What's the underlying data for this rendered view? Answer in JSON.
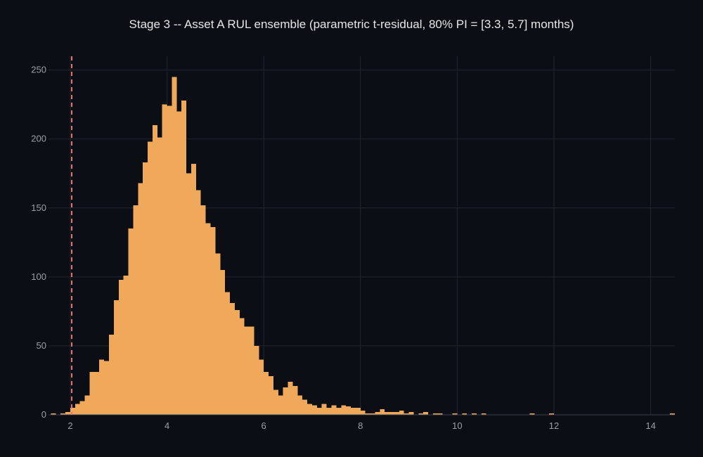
{
  "chart_data": {
    "type": "bar",
    "title": "Stage 3 -- Asset A RUL ensemble (parametric t-residual, 80% PI = [3.3, 5.7] months)",
    "xlabel": "",
    "ylabel": "",
    "xlim": [
      1.55,
      14.5
    ],
    "ylim": [
      0,
      260
    ],
    "grid": true,
    "legend": "none",
    "bar_color": "#f0a95a",
    "reference_line_color": "#e8707a",
    "background_color": "#0b0e14",
    "bin_width": 0.1,
    "x_ticks": [
      2,
      4,
      6,
      8,
      10,
      12,
      14
    ],
    "y_ticks": [
      0,
      50,
      100,
      150,
      200,
      250
    ],
    "reference_line_x": 2.03,
    "bins_start": [
      1.6,
      1.7,
      1.8,
      1.9,
      2.0,
      2.1,
      2.2,
      2.3,
      2.4,
      2.5,
      2.6,
      2.7,
      2.8,
      2.9,
      3.0,
      3.1,
      3.2,
      3.3,
      3.4,
      3.5,
      3.6,
      3.7,
      3.8,
      3.9,
      4.0,
      4.1,
      4.2,
      4.3,
      4.4,
      4.5,
      4.6,
      4.7,
      4.8,
      4.9,
      5.0,
      5.1,
      5.2,
      5.3,
      5.4,
      5.5,
      5.6,
      5.7,
      5.8,
      5.9,
      6.0,
      6.1,
      6.2,
      6.3,
      6.4,
      6.5,
      6.6,
      6.7,
      6.8,
      6.9,
      7.0,
      7.1,
      7.2,
      7.3,
      7.4,
      7.5,
      7.6,
      7.7,
      7.8,
      7.9,
      8.0,
      8.1,
      8.2,
      8.3,
      8.4,
      8.5,
      8.6,
      8.7,
      8.8,
      8.9,
      9.0,
      9.2,
      9.3,
      9.5,
      9.6,
      9.9,
      10.1,
      10.3,
      10.5,
      11.5,
      11.9,
      14.4
    ],
    "counts": [
      1,
      0,
      1,
      2,
      5,
      8,
      10,
      14,
      31,
      31,
      40,
      39,
      58,
      83,
      98,
      101,
      135,
      152,
      168,
      183,
      198,
      210,
      201,
      225,
      224,
      245,
      220,
      228,
      175,
      182,
      163,
      152,
      139,
      136,
      117,
      105,
      89,
      81,
      76,
      70,
      64,
      64,
      50,
      40,
      31,
      28,
      18,
      14,
      20,
      24,
      21,
      14,
      11,
      8,
      7,
      5,
      8,
      5,
      7,
      5,
      7,
      6,
      5,
      5,
      3,
      1,
      1,
      2,
      4,
      2,
      2,
      2,
      3,
      1,
      2,
      1,
      2,
      1,
      1,
      1,
      1,
      1,
      1,
      1,
      1,
      1
    ]
  }
}
